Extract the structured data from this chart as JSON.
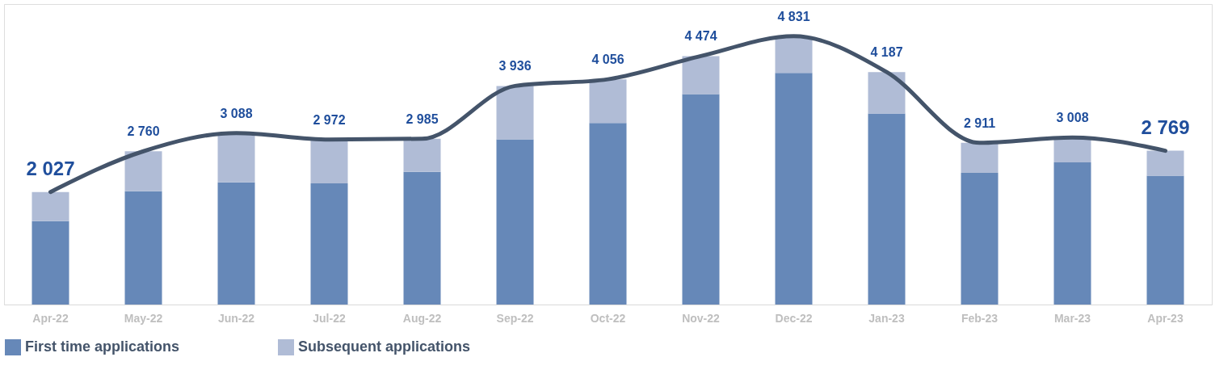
{
  "chart_data": {
    "type": "bar",
    "stacked": true,
    "categories": [
      "Apr-22",
      "May-22",
      "Jun-22",
      "Jul-22",
      "Aug-22",
      "Sep-22",
      "Oct-22",
      "Nov-22",
      "Dec-22",
      "Jan-23",
      "Feb-23",
      "Mar-23",
      "Apr-23"
    ],
    "series": [
      {
        "name": "First time applications",
        "color": "#6688b8",
        "values": [
          1500,
          2040,
          2200,
          2180,
          2390,
          2975,
          3270,
          3790,
          4170,
          3440,
          2370,
          2560,
          2320
        ]
      },
      {
        "name": "Subsequent applications",
        "color": "#b0bcd6",
        "values": [
          527,
          720,
          888,
          792,
          595,
          961,
          786,
          684,
          661,
          747,
          541,
          448,
          449
        ]
      },
      {
        "type": "line",
        "color": "#44546a",
        "values": [
          2027,
          2760,
          3088,
          2972,
          2985,
          3936,
          4056,
          4474,
          4831,
          4187,
          2911,
          3008,
          2769
        ],
        "value_labels": [
          "2 027",
          "2 760",
          "3 088",
          "2 972",
          "2 985",
          "3 936",
          "4 056",
          "4 474",
          "4 831",
          "4 187",
          "2 911",
          "3 008",
          "2 769"
        ]
      }
    ],
    "legend": "bottom",
    "grid": false
  }
}
